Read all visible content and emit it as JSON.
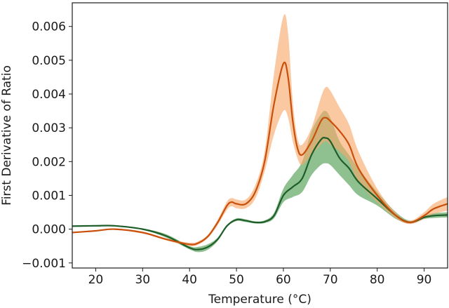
{
  "chart_data": {
    "type": "line",
    "title": "",
    "xlabel": "Temperature (°C)",
    "ylabel": "First Derivative of Ratio",
    "xlim": [
      15,
      95
    ],
    "ylim": [
      -0.00115,
      0.0067
    ],
    "xticks": [
      20,
      30,
      40,
      50,
      60,
      70,
      80,
      90
    ],
    "xtick_labels": [
      "20",
      "30",
      "40",
      "50",
      "60",
      "70",
      "80",
      "90"
    ],
    "yticks": [
      -0.001,
      0.0,
      0.001,
      0.002,
      0.003,
      0.004,
      0.005,
      0.006
    ],
    "ytick_labels": [
      "−0.001",
      "0.000",
      "0.001",
      "0.002",
      "0.003",
      "0.004",
      "0.005",
      "0.006"
    ],
    "grid": false,
    "series": [
      {
        "name": "green",
        "line_color": "#1e5e2a",
        "band_color": "#4a9a4c",
        "x": [
          15,
          20,
          24,
          30,
          35,
          40,
          42,
          44,
          46,
          48,
          50,
          52,
          54,
          56,
          58,
          60,
          62,
          64,
          66,
          68,
          69,
          70,
          72,
          74,
          76,
          80,
          84,
          87,
          90,
          92,
          95
        ],
        "y": [
          9e-05,
          0.0001,
          0.0001,
          0.0,
          -0.0002,
          -0.00055,
          -0.0006,
          -0.00052,
          -0.0003,
          0.0001,
          0.00028,
          0.00025,
          0.0002,
          0.00022,
          0.0004,
          0.001,
          0.00125,
          0.0015,
          0.0022,
          0.00265,
          0.0027,
          0.0026,
          0.0021,
          0.0018,
          0.0014,
          0.0009,
          0.0004,
          0.0002,
          0.00035,
          0.0004,
          0.00042
        ],
        "lower": [
          7e-05,
          8e-05,
          8e-05,
          -2e-05,
          -0.00025,
          -0.0006,
          -0.00068,
          -0.0006,
          -0.00035,
          7e-05,
          0.00024,
          0.00021,
          0.00017,
          0.00018,
          0.00032,
          0.0008,
          0.00095,
          0.0011,
          0.0016,
          0.0019,
          0.00195,
          0.0019,
          0.0016,
          0.0013,
          0.001,
          0.0007,
          0.0003,
          0.00017,
          0.0003,
          0.00033,
          0.00035
        ],
        "upper": [
          0.00011,
          0.00012,
          0.00012,
          2e-05,
          -0.00015,
          -0.0005,
          -0.00052,
          -0.00044,
          -0.00025,
          0.00013,
          0.00032,
          0.00029,
          0.00023,
          0.00026,
          0.00048,
          0.0012,
          0.0016,
          0.002,
          0.0029,
          0.0034,
          0.0035,
          0.0033,
          0.0026,
          0.0022,
          0.0018,
          0.0011,
          0.0005,
          0.00025,
          0.0004,
          0.00047,
          0.0005
        ]
      },
      {
        "name": "orange",
        "line_color": "#c8500c",
        "band_color": "#f8a868",
        "x": [
          15,
          20,
          24,
          30,
          35,
          40,
          42,
          44,
          46,
          48,
          49,
          50,
          52,
          54,
          56,
          58,
          60,
          61,
          62,
          63,
          64,
          66,
          68,
          69,
          70,
          72,
          74,
          76,
          80,
          84,
          87,
          90,
          92,
          95
        ],
        "y": [
          -0.0001,
          -5e-05,
          0.0,
          -0.0001,
          -0.0003,
          -0.00045,
          -0.0004,
          -0.0002,
          0.0002,
          0.0007,
          0.0008,
          0.00075,
          0.00075,
          0.0011,
          0.002,
          0.0037,
          0.0049,
          0.0045,
          0.0032,
          0.0024,
          0.0022,
          0.0026,
          0.0032,
          0.0033,
          0.0032,
          0.0029,
          0.0025,
          0.0018,
          0.001,
          0.0004,
          0.0002,
          0.0004,
          0.0006,
          0.00075
        ],
        "lower": [
          -0.00012,
          -7e-05,
          -2e-05,
          -0.00013,
          -0.00033,
          -0.0005,
          -0.00045,
          -0.00025,
          0.00012,
          0.00058,
          0.00068,
          0.00062,
          0.00062,
          0.0009,
          0.0017,
          0.0028,
          0.0035,
          0.0033,
          0.0026,
          0.0021,
          0.0019,
          0.0022,
          0.0025,
          0.0026,
          0.0025,
          0.0023,
          0.002,
          0.0014,
          0.0008,
          0.00032,
          0.00015,
          0.0003,
          0.00045,
          0.00055
        ],
        "upper": [
          -8e-05,
          -3e-05,
          2e-05,
          -7e-05,
          -0.00027,
          -0.0004,
          -0.00035,
          -0.00015,
          0.00028,
          0.00082,
          0.00092,
          0.00088,
          0.00088,
          0.0013,
          0.0023,
          0.0046,
          0.0063,
          0.0058,
          0.0038,
          0.0027,
          0.0025,
          0.003,
          0.0039,
          0.0042,
          0.0041,
          0.0036,
          0.0031,
          0.0023,
          0.0012,
          0.00048,
          0.00025,
          0.0005,
          0.00075,
          0.00095
        ]
      }
    ]
  }
}
